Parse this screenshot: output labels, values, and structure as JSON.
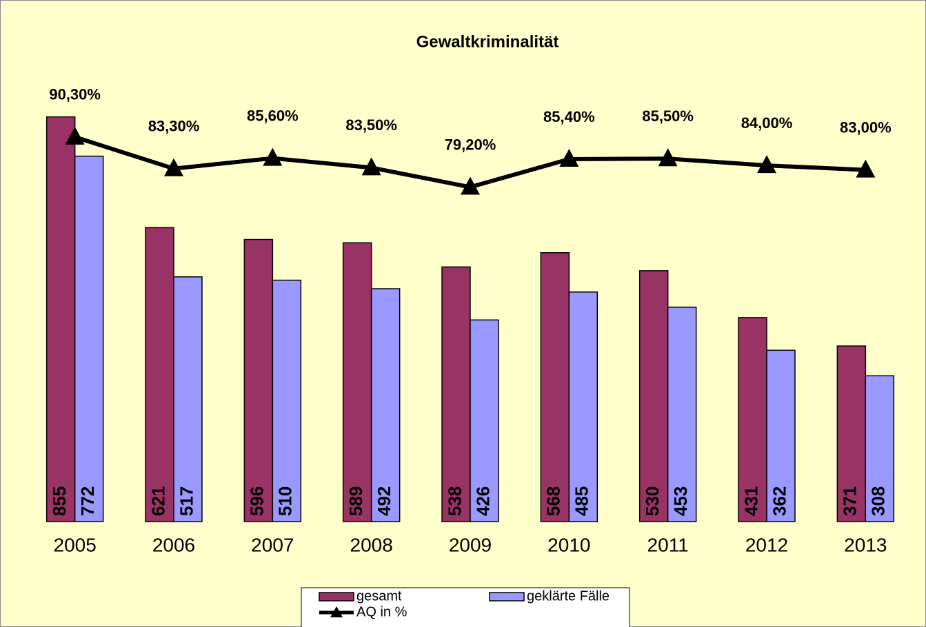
{
  "chart_data": {
    "type": "bar",
    "title": "Gewaltkriminalität",
    "categories": [
      "2005",
      "2006",
      "2007",
      "2008",
      "2009",
      "2010",
      "2011",
      "2012",
      "2013"
    ],
    "series": [
      {
        "name": "gesamt",
        "color": "#993366",
        "values": [
          855,
          621,
          596,
          589,
          538,
          568,
          530,
          431,
          371
        ]
      },
      {
        "name": "geklärte Fälle",
        "color": "#9999ff",
        "values": [
          772,
          517,
          510,
          492,
          426,
          485,
          453,
          362,
          308
        ]
      },
      {
        "name": "AQ in %",
        "color": "#000000",
        "type": "line",
        "axis": "y2",
        "values": [
          90.3,
          83.3,
          85.6,
          83.5,
          79.2,
          85.4,
          85.5,
          84.0,
          83.0
        ],
        "value_labels": [
          "90,30%",
          "83,30%",
          "85,60%",
          "83,50%",
          "79,20%",
          "85,40%",
          "85,50%",
          "84,00%",
          "83,00%"
        ]
      }
    ],
    "ylim": [
      0,
      1000
    ],
    "y2lim": [
      5,
      110
    ],
    "legend": "bottom"
  }
}
